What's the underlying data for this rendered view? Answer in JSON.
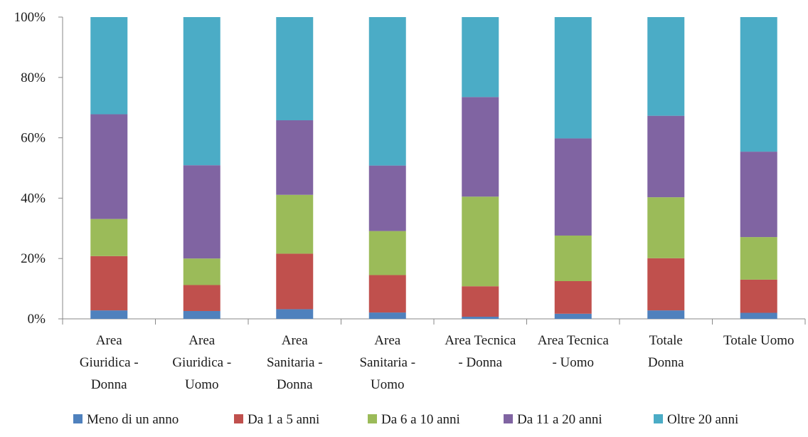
{
  "chart_data": {
    "type": "bar",
    "stacked": true,
    "percent": true,
    "categories": [
      "Area Giuridica - Donna",
      "Area Giuridica - Uomo",
      "Area Sanitaria - Donna",
      "Area Sanitaria - Uomo",
      "Area Tecnica - Donna",
      "Area Tecnica - Uomo",
      "Totale Donna",
      "Totale Uomo"
    ],
    "category_lines": [
      [
        "Area",
        "Giuridica -",
        "Donna"
      ],
      [
        "Area",
        "Giuridica -",
        "Uomo"
      ],
      [
        "Area",
        "Sanitaria -",
        "Donna"
      ],
      [
        "Area",
        "Sanitaria -",
        "Uomo"
      ],
      [
        "Area Tecnica",
        "- Donna"
      ],
      [
        "Area Tecnica",
        "- Uomo"
      ],
      [
        "Totale",
        "Donna"
      ],
      [
        "Totale Uomo"
      ]
    ],
    "series": [
      {
        "name": "Meno di un anno",
        "color": "#4f81bd",
        "values": [
          2.8,
          2.6,
          3.2,
          2.1,
          0.7,
          1.7,
          2.8,
          2.0
        ]
      },
      {
        "name": "Da 1 a 5 anni",
        "color": "#c0504d",
        "values": [
          18.0,
          8.6,
          18.4,
          12.4,
          10.1,
          10.8,
          17.3,
          11.0
        ]
      },
      {
        "name": "Da 6 a 10 anni",
        "color": "#9bbb59",
        "values": [
          12.3,
          8.8,
          19.5,
          14.6,
          29.7,
          15.1,
          20.2,
          14.1
        ]
      },
      {
        "name": "Da 11 a 20 anni",
        "color": "#8064a2",
        "values": [
          34.7,
          30.9,
          24.7,
          21.7,
          33.0,
          32.2,
          27.0,
          28.3
        ]
      },
      {
        "name": "Oltre 20 anni",
        "color": "#4bacc6",
        "values": [
          32.2,
          49.1,
          34.2,
          49.2,
          26.5,
          40.2,
          32.7,
          44.6
        ]
      }
    ],
    "y_ticks": [
      "0%",
      "20%",
      "40%",
      "60%",
      "80%",
      "100%"
    ],
    "ylim": [
      0,
      100
    ],
    "grid": false,
    "legend_position": "bottom"
  }
}
